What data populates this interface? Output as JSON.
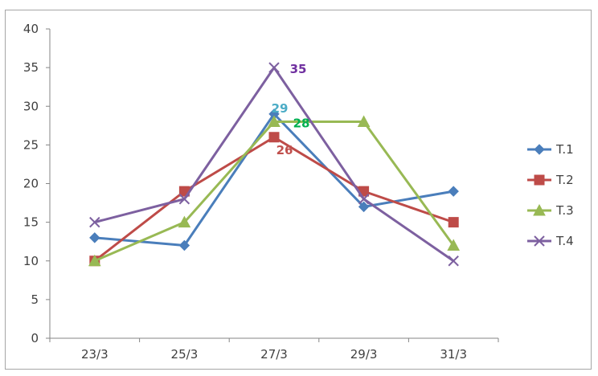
{
  "chart_data": {
    "type": "line",
    "title": "",
    "xlabel": "",
    "ylabel": "",
    "categories": [
      "23/3",
      "25/3",
      "27/3",
      "29/3",
      "31/3"
    ],
    "ylim": [
      0,
      40
    ],
    "yticks": [
      0,
      5,
      10,
      15,
      20,
      25,
      30,
      35,
      40
    ],
    "grid": false,
    "legend_position": "right",
    "series": [
      {
        "name": "T.1",
        "values": [
          13,
          12,
          29,
          17,
          19
        ],
        "color": "#4a7ebb",
        "marker": "diamond"
      },
      {
        "name": "T.2",
        "values": [
          10,
          19,
          26,
          19,
          15
        ],
        "color": "#be4b48",
        "marker": "square"
      },
      {
        "name": "T.3",
        "values": [
          10,
          15,
          28,
          28,
          12
        ],
        "color": "#98b954",
        "marker": "triangle"
      },
      {
        "name": "T.4",
        "values": [
          15,
          18,
          35,
          18,
          10
        ],
        "color": "#7d60a0",
        "marker": "x"
      }
    ],
    "data_labels": [
      {
        "series": "T.4",
        "category": "27/3",
        "text": "35",
        "color": "#7030a0"
      },
      {
        "series": "T.1",
        "category": "27/3",
        "text": "29",
        "color": "#4bacc6"
      },
      {
        "series": "T.3",
        "category": "27/3",
        "text": "28",
        "color": "#00b050"
      },
      {
        "series": "T.2",
        "category": "27/3",
        "text": "26",
        "color": "#c0504d"
      }
    ]
  }
}
